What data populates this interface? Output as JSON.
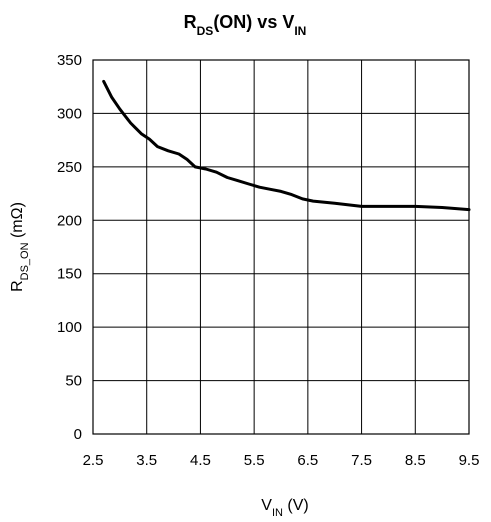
{
  "chart_data": {
    "type": "line",
    "title": {
      "parts": [
        {
          "text": "R",
          "sub": false
        },
        {
          "text": "DS",
          "sub": true
        },
        {
          "text": "(ON) vs V",
          "sub": false
        },
        {
          "text": "IN",
          "sub": true
        }
      ]
    },
    "xlabel": {
      "parts": [
        {
          "text": "V",
          "sub": false
        },
        {
          "text": "IN",
          "sub": true
        },
        {
          "text": " (V)",
          "sub": false
        }
      ]
    },
    "ylabel": {
      "parts": [
        {
          "text": "R",
          "sub": false
        },
        {
          "text": "DS_ON",
          "sub": true
        },
        {
          "text": " (mΩ)",
          "sub": false
        }
      ]
    },
    "xlim": [
      2.5,
      9.5
    ],
    "ylim": [
      0,
      350
    ],
    "xticks": [
      "2.5",
      "3.5",
      "4.5",
      "5.5",
      "6.5",
      "7.5",
      "8.5",
      "9.5"
    ],
    "yticks": [
      "0",
      "50",
      "100",
      "150",
      "200",
      "250",
      "300",
      "350"
    ],
    "grid": true,
    "line_color": "#000000",
    "series": [
      {
        "x": [
          2.7,
          2.85,
          3.0,
          3.2,
          3.4,
          3.55,
          3.7,
          3.9,
          4.1,
          4.25,
          4.4,
          4.6,
          4.8,
          5.0,
          5.2,
          5.4,
          5.6,
          5.8,
          6.0,
          6.2,
          6.4,
          6.6,
          7.0,
          7.5,
          8.0,
          8.5,
          9.0,
          9.5
        ],
        "y": [
          330,
          315,
          304,
          291,
          281,
          276,
          269,
          265,
          262,
          257,
          250,
          248,
          245,
          240,
          237,
          234,
          231,
          229,
          227,
          224,
          220,
          218,
          216,
          213,
          213,
          213,
          212,
          210
        ]
      }
    ]
  }
}
